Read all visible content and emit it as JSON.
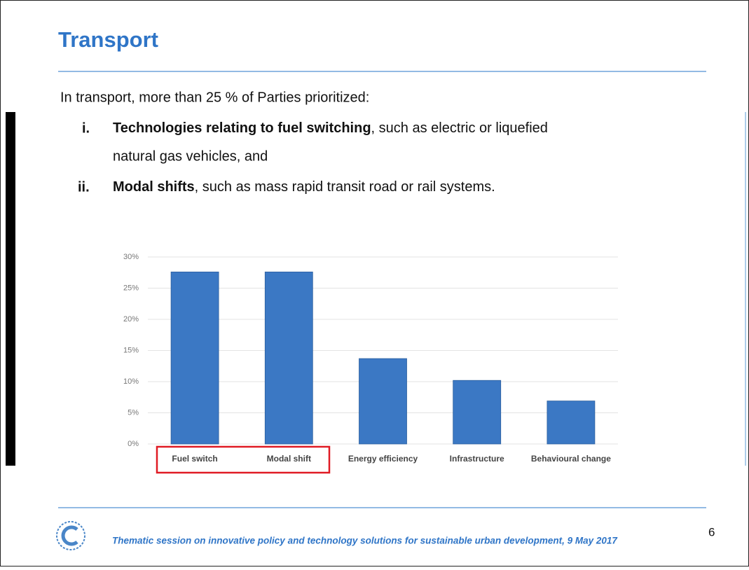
{
  "header": {
    "title": "Transport"
  },
  "intro": "In transport, more than 25 % of Parties prioritized:",
  "bullets": [
    {
      "numeral": "i.",
      "bold": "Technologies relating to fuel switching",
      "text": ", such as electric or liquefied",
      "text2": "natural gas vehicles, and"
    },
    {
      "numeral": "ii.",
      "bold": "Modal shifts",
      "text": ", such as mass rapid transit road or rail systems."
    }
  ],
  "chart_data": {
    "type": "bar",
    "categories": [
      "Fuel switch",
      "Modal shift",
      "Energy efficiency",
      "Infrastructure",
      "Behavioural change"
    ],
    "values": [
      27.6,
      27.6,
      13.7,
      10.2,
      6.9
    ],
    "color": "#3b78c4",
    "ylim": [
      0,
      30
    ],
    "yticks": [
      {
        "value": 0,
        "label": "0%"
      },
      {
        "value": 5,
        "label": "5%"
      },
      {
        "value": 10,
        "label": "10%"
      },
      {
        "value": 15,
        "label": "15%"
      },
      {
        "value": 20,
        "label": "20%"
      },
      {
        "value": 25,
        "label": "25%"
      },
      {
        "value": 30,
        "label": "30%"
      }
    ],
    "grid": true
  },
  "footer": {
    "text": "Thematic session on innovative policy and technology solutions for sustainable urban development, 9 May 2017",
    "page": "6"
  }
}
